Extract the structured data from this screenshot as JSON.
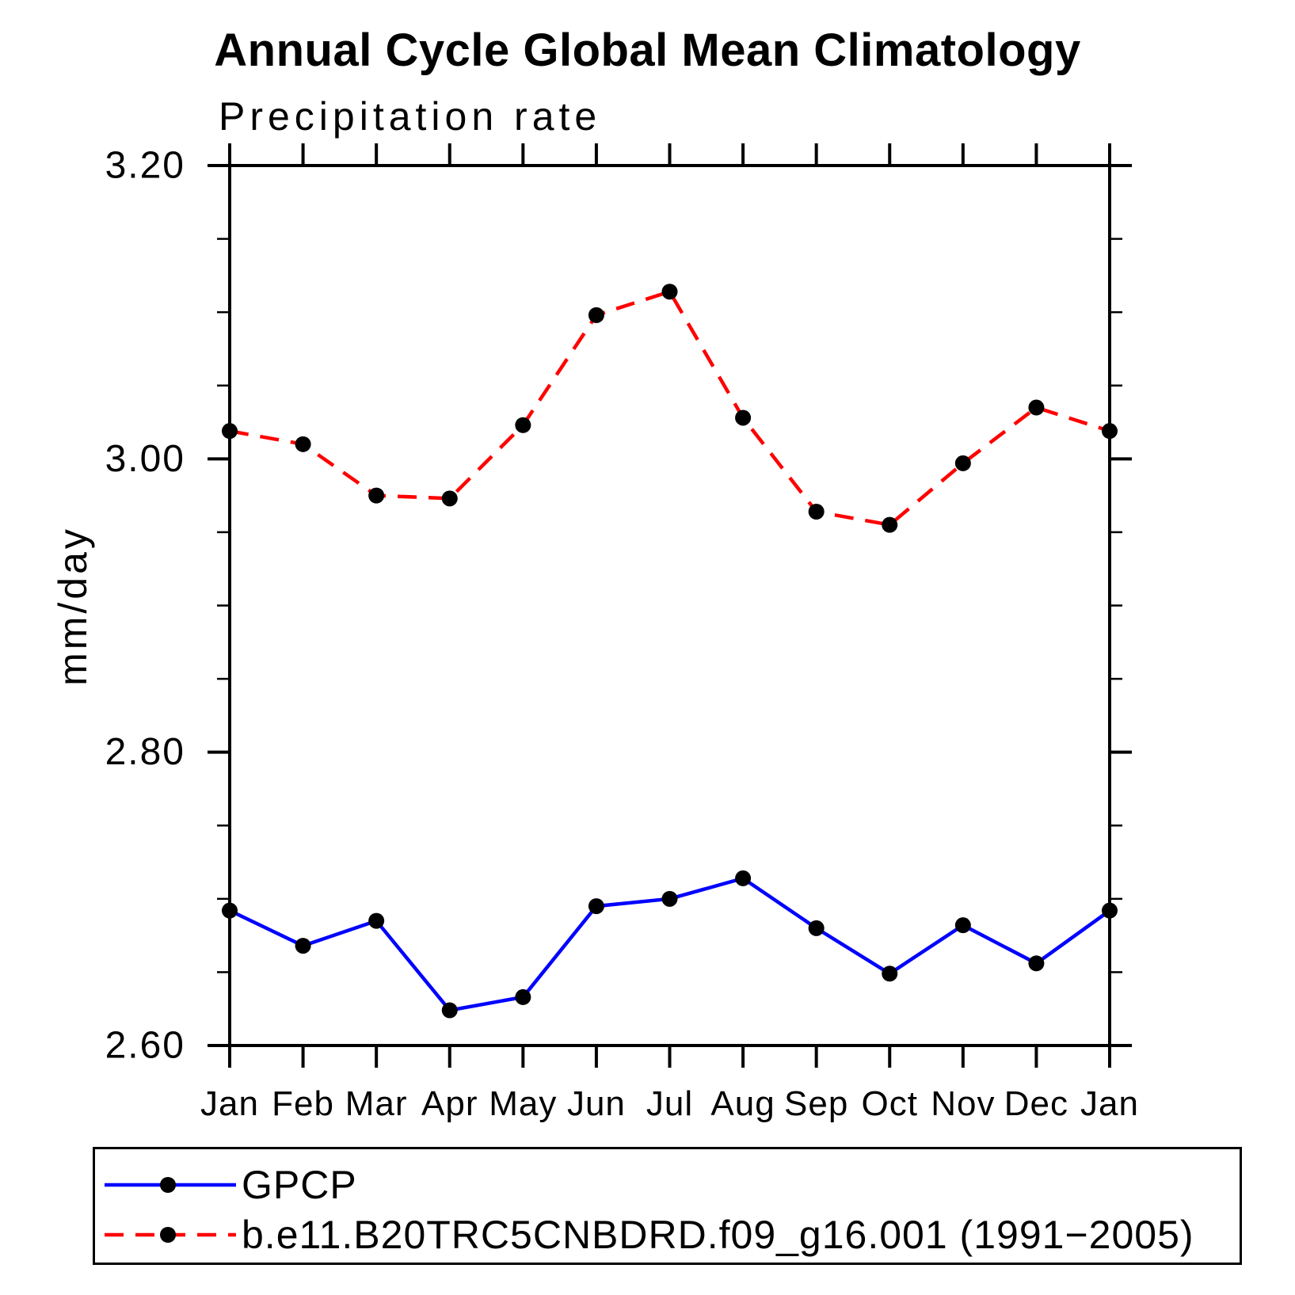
{
  "page": {
    "background": "#ffffff"
  },
  "chart_data": {
    "type": "line",
    "title": "Annual Cycle Global Mean Climatology",
    "subtitle": "Precipitation rate",
    "ylabel": "mm/day",
    "xlabel": "",
    "categories": [
      "Jan",
      "Feb",
      "Mar",
      "Apr",
      "May",
      "Jun",
      "Jul",
      "Aug",
      "Sep",
      "Oct",
      "Nov",
      "Dec",
      "Jan"
    ],
    "ylim": [
      2.6,
      3.2
    ],
    "ytick_major": [
      2.6,
      2.8,
      3.0,
      3.2
    ],
    "ytick_major_labels": [
      "2.60",
      "2.80",
      "3.00",
      "3.20"
    ],
    "ytick_minor_step": 0.05,
    "grid": false,
    "axis_color": "#000000",
    "text_color": "#000000",
    "legend_position": "bottom-left-boxed",
    "series": [
      {
        "name": "GPCP",
        "color": "#0000ff",
        "line_style": "solid",
        "marker": "circle",
        "marker_color": "#000000",
        "values": [
          2.692,
          2.668,
          2.685,
          2.624,
          2.633,
          2.695,
          2.7,
          2.714,
          2.68,
          2.649,
          2.682,
          2.656,
          2.692
        ]
      },
      {
        "name": "b.e11.B20TRC5CNBDRD.f09_g16.001 (1991−2005)",
        "color": "#ff0000",
        "line_style": "dashed",
        "marker": "circle",
        "marker_color": "#000000",
        "values": [
          3.019,
          3.01,
          2.975,
          2.973,
          3.023,
          3.098,
          3.114,
          3.028,
          2.964,
          2.955,
          2.997,
          3.035,
          3.019
        ]
      }
    ]
  }
}
